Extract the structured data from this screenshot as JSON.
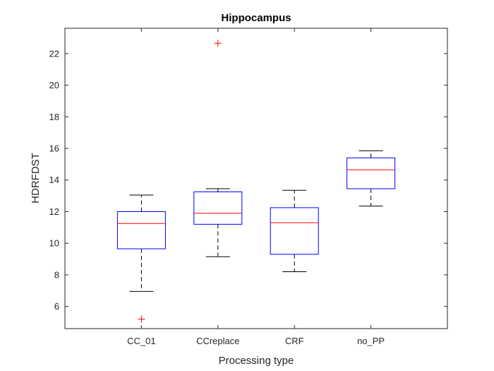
{
  "chart_data": {
    "type": "boxplot",
    "title": "Hippocampus",
    "xlabel": "Processing type",
    "ylabel": "HDRFDST",
    "categories": [
      "CC_01",
      "CCreplace",
      "CRF",
      "no_PP"
    ],
    "ylim": [
      4.6,
      23.6
    ],
    "yticks": [
      6,
      8,
      10,
      12,
      14,
      16,
      18,
      20,
      22
    ],
    "boxes": [
      {
        "category": "CC_01",
        "whisker_low": 6.95,
        "q1": 9.65,
        "median": 11.25,
        "q3": 12.0,
        "whisker_high": 13.05,
        "outliers": [
          5.2
        ]
      },
      {
        "category": "CCreplace",
        "whisker_low": 9.15,
        "q1": 11.2,
        "median": 11.9,
        "q3": 13.25,
        "whisker_high": 13.45,
        "outliers": [
          22.65
        ]
      },
      {
        "category": "CRF",
        "whisker_low": 8.2,
        "q1": 9.3,
        "median": 11.3,
        "q3": 12.25,
        "whisker_high": 13.35,
        "outliers": []
      },
      {
        "category": "no_PP",
        "whisker_low": 12.35,
        "q1": 13.45,
        "median": 14.65,
        "q3": 15.4,
        "whisker_high": 15.85,
        "outliers": []
      }
    ],
    "grid": false,
    "colors": {
      "box": "#0000ff",
      "median": "#ff0000",
      "whisker": "#000000",
      "outlier": "#ff0000",
      "axes": "#262626"
    }
  }
}
